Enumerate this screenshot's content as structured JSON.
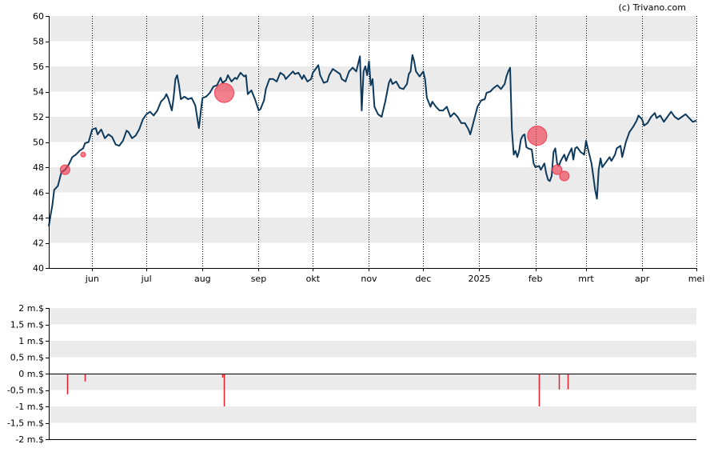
{
  "credit": "(c) Trivano.com",
  "colors": {
    "line": "#0d3a5c",
    "band": "#ebebeb",
    "marker": "#f03c50",
    "bar": "#e8202c",
    "axis": "#000000"
  },
  "chart_data": [
    {
      "type": "line",
      "title": "",
      "ylim": [
        40,
        60
      ],
      "y_ticks": [
        40,
        42,
        44,
        46,
        48,
        50,
        52,
        54,
        56,
        58,
        60
      ],
      "y_tick_labels": [
        "40",
        "42",
        "44",
        "46",
        "48",
        "50",
        "52",
        "54",
        "56",
        "58",
        "60"
      ],
      "x_ticks": [
        {
          "label": "jun",
          "day": 24
        },
        {
          "label": "jul",
          "day": 54
        },
        {
          "label": "aug",
          "day": 85
        },
        {
          "label": "sep",
          "day": 116
        },
        {
          "label": "okt",
          "day": 146
        },
        {
          "label": "nov",
          "day": 177
        },
        {
          "label": "dec",
          "day": 207
        },
        {
          "label": "2025",
          "day": 238
        },
        {
          "label": "feb",
          "day": 269
        },
        {
          "label": "mrt",
          "day": 297
        },
        {
          "label": "apr",
          "day": 328
        },
        {
          "label": "mei",
          "day": 358
        }
      ],
      "x_range": [
        0,
        358
      ],
      "grid": "vertical dotted at month starts",
      "series": [
        {
          "points": [
            [
              0,
              43.3
            ],
            [
              1,
              44.2
            ],
            [
              2,
              45.0
            ],
            [
              3,
              46.2
            ],
            [
              5,
              46.5
            ],
            [
              7,
              47.6
            ],
            [
              9,
              47.8
            ],
            [
              11,
              48.2
            ],
            [
              13,
              48.8
            ],
            [
              15,
              49.0
            ],
            [
              17,
              49.3
            ],
            [
              19,
              49.5
            ],
            [
              20,
              49.9
            ],
            [
              22,
              50.0
            ],
            [
              24,
              51.0
            ],
            [
              26,
              51.1
            ],
            [
              27,
              50.6
            ],
            [
              29,
              51.0
            ],
            [
              31,
              50.3
            ],
            [
              33,
              50.6
            ],
            [
              35,
              50.4
            ],
            [
              37,
              49.8
            ],
            [
              39,
              49.7
            ],
            [
              41,
              50.1
            ],
            [
              43,
              50.9
            ],
            [
              44,
              50.8
            ],
            [
              46,
              50.3
            ],
            [
              48,
              50.5
            ],
            [
              50,
              51.0
            ],
            [
              52,
              51.8
            ],
            [
              54,
              52.2
            ],
            [
              56,
              52.4
            ],
            [
              58,
              52.1
            ],
            [
              60,
              52.5
            ],
            [
              62,
              53.2
            ],
            [
              64,
              53.5
            ],
            [
              65,
              53.8
            ],
            [
              66,
              53.5
            ],
            [
              68,
              52.5
            ],
            [
              69,
              53.5
            ],
            [
              70,
              55.0
            ],
            [
              71,
              55.3
            ],
            [
              72,
              54.5
            ],
            [
              73,
              53.4
            ],
            [
              75,
              53.6
            ],
            [
              77,
              53.4
            ],
            [
              79,
              53.5
            ],
            [
              81,
              52.9
            ],
            [
              82,
              52.0
            ],
            [
              83,
              51.1
            ],
            [
              84,
              52.4
            ],
            [
              85,
              53.5
            ],
            [
              87,
              53.6
            ],
            [
              89,
              53.9
            ],
            [
              91,
              54.4
            ],
            [
              93,
              54.5
            ],
            [
              95,
              55.1
            ],
            [
              96,
              54.7
            ],
            [
              98,
              54.9
            ],
            [
              99,
              55.3
            ],
            [
              101,
              54.8
            ],
            [
              103,
              55.1
            ],
            [
              104,
              55.0
            ],
            [
              106,
              55.5
            ],
            [
              108,
              55.2
            ],
            [
              109,
              55.3
            ],
            [
              110,
              53.8
            ],
            [
              112,
              54.1
            ],
            [
              114,
              53.4
            ],
            [
              116,
              52.5
            ],
            [
              117,
              52.6
            ],
            [
              119,
              53.3
            ],
            [
              120,
              54.2
            ],
            [
              122,
              55.0
            ],
            [
              124,
              55.0
            ],
            [
              126,
              54.8
            ],
            [
              128,
              55.5
            ],
            [
              130,
              55.3
            ],
            [
              131,
              55.0
            ],
            [
              133,
              55.3
            ],
            [
              135,
              55.6
            ],
            [
              136,
              55.4
            ],
            [
              138,
              55.5
            ],
            [
              140,
              55.0
            ],
            [
              141,
              55.3
            ],
            [
              143,
              54.8
            ],
            [
              145,
              55.0
            ],
            [
              146,
              55.5
            ],
            [
              148,
              55.9
            ],
            [
              149,
              56.1
            ],
            [
              150,
              55.3
            ],
            [
              152,
              54.7
            ],
            [
              154,
              54.8
            ],
            [
              155,
              55.3
            ],
            [
              157,
              55.8
            ],
            [
              159,
              55.6
            ],
            [
              161,
              55.4
            ],
            [
              162,
              55.0
            ],
            [
              164,
              54.8
            ],
            [
              166,
              55.6
            ],
            [
              168,
              55.9
            ],
            [
              170,
              55.6
            ],
            [
              172,
              56.8
            ],
            [
              173,
              52.5
            ],
            [
              174,
              55.6
            ],
            [
              175,
              56.0
            ],
            [
              176,
              55.3
            ],
            [
              177,
              56.4
            ],
            [
              178,
              54.5
            ],
            [
              179,
              55.0
            ],
            [
              180,
              52.8
            ],
            [
              182,
              52.2
            ],
            [
              184,
              52.0
            ],
            [
              186,
              53.2
            ],
            [
              188,
              54.7
            ],
            [
              189,
              55.0
            ],
            [
              190,
              54.6
            ],
            [
              192,
              54.8
            ],
            [
              194,
              54.3
            ],
            [
              196,
              54.2
            ],
            [
              198,
              54.6
            ],
            [
              199,
              55.4
            ],
            [
              200,
              55.6
            ],
            [
              201,
              56.9
            ],
            [
              202,
              56.4
            ],
            [
              203,
              55.6
            ],
            [
              205,
              55.2
            ],
            [
              207,
              55.6
            ],
            [
              208,
              55.0
            ],
            [
              209,
              53.5
            ],
            [
              211,
              52.8
            ],
            [
              212,
              53.2
            ],
            [
              214,
              52.8
            ],
            [
              216,
              52.5
            ],
            [
              218,
              52.5
            ],
            [
              220,
              52.8
            ],
            [
              222,
              52.0
            ],
            [
              224,
              52.3
            ],
            [
              226,
              52.0
            ],
            [
              228,
              51.5
            ],
            [
              230,
              51.5
            ],
            [
              232,
              51.0
            ],
            [
              233,
              50.6
            ],
            [
              235,
              51.7
            ],
            [
              237,
              52.8
            ],
            [
              239,
              53.3
            ],
            [
              241,
              53.4
            ],
            [
              242,
              53.9
            ],
            [
              244,
              54.0
            ],
            [
              246,
              54.3
            ],
            [
              248,
              54.5
            ],
            [
              250,
              54.2
            ],
            [
              252,
              54.6
            ],
            [
              253,
              55.2
            ],
            [
              254,
              55.6
            ],
            [
              255,
              55.9
            ],
            [
              256,
              51.0
            ],
            [
              257,
              49.0
            ],
            [
              258,
              49.3
            ],
            [
              259,
              48.8
            ],
            [
              260,
              49.3
            ],
            [
              261,
              50.2
            ],
            [
              262,
              50.5
            ],
            [
              263,
              50.6
            ],
            [
              264,
              49.6
            ],
            [
              265,
              49.5
            ],
            [
              267,
              49.4
            ],
            [
              268,
              48.3
            ],
            [
              269,
              48.0
            ],
            [
              271,
              48.1
            ],
            [
              272,
              47.8
            ],
            [
              274,
              48.3
            ],
            [
              275,
              47.5
            ],
            [
              276,
              47.0
            ],
            [
              277,
              46.9
            ],
            [
              278,
              47.3
            ],
            [
              279,
              49.2
            ],
            [
              280,
              49.5
            ],
            [
              281,
              48.3
            ],
            [
              282,
              48.1
            ],
            [
              283,
              48.5
            ],
            [
              285,
              49.0
            ],
            [
              286,
              48.5
            ],
            [
              287,
              48.9
            ],
            [
              289,
              49.5
            ],
            [
              290,
              48.6
            ],
            [
              291,
              49.5
            ],
            [
              292,
              49.6
            ],
            [
              294,
              49.2
            ],
            [
              296,
              49.0
            ],
            [
              297,
              50.1
            ],
            [
              298,
              49.5
            ],
            [
              300,
              48.3
            ],
            [
              301,
              47.3
            ],
            [
              302,
              46.2
            ],
            [
              303,
              45.5
            ],
            [
              304,
              47.8
            ],
            [
              305,
              48.7
            ],
            [
              306,
              48.0
            ],
            [
              308,
              48.4
            ],
            [
              310,
              48.8
            ],
            [
              311,
              48.5
            ],
            [
              313,
              49.0
            ],
            [
              314,
              49.5
            ],
            [
              316,
              49.7
            ],
            [
              317,
              48.8
            ],
            [
              319,
              50.0
            ],
            [
              321,
              50.8
            ],
            [
              323,
              51.2
            ],
            [
              325,
              51.7
            ],
            [
              326,
              52.1
            ],
            [
              328,
              51.8
            ],
            [
              329,
              51.3
            ],
            [
              331,
              51.5
            ],
            [
              333,
              52.0
            ],
            [
              335,
              52.3
            ],
            [
              336,
              51.9
            ],
            [
              338,
              52.1
            ],
            [
              340,
              51.6
            ],
            [
              342,
              52.0
            ],
            [
              344,
              52.4
            ],
            [
              346,
              52.0
            ],
            [
              348,
              51.8
            ],
            [
              350,
              52.0
            ],
            [
              352,
              52.2
            ],
            [
              354,
              51.9
            ],
            [
              356,
              51.6
            ],
            [
              358,
              51.7
            ]
          ]
        }
      ],
      "markers": [
        {
          "day": 9,
          "value": 47.8,
          "size": "small"
        },
        {
          "day": 19,
          "value": 49.0,
          "size": "tiny"
        },
        {
          "day": 97,
          "value": 53.9,
          "size": "large"
        },
        {
          "day": 270,
          "value": 50.5,
          "size": "large"
        },
        {
          "day": 281,
          "value": 47.8,
          "size": "small"
        },
        {
          "day": 285,
          "value": 47.3,
          "size": "small"
        }
      ]
    },
    {
      "type": "bar",
      "title": "",
      "ylim": [
        -2,
        2
      ],
      "y_ticks": [
        -2,
        -1.5,
        -1,
        -0.5,
        0,
        0.5,
        1,
        1.5,
        2
      ],
      "y_tick_labels": [
        "-2 m.$",
        "-1,5 m.$",
        "-1 m.$",
        "-0,5 m.$",
        "0 m.$",
        "0,5 m.$",
        "1 m.$",
        "1,5 m.$",
        "2 m.$"
      ],
      "x_range": [
        0,
        358
      ],
      "bars": [
        {
          "day": 10,
          "value": -0.63
        },
        {
          "day": 20,
          "value": -0.24
        },
        {
          "day": 96,
          "value": -0.12
        },
        {
          "day": 97,
          "value": -1.0
        },
        {
          "day": 271,
          "value": -1.0
        },
        {
          "day": 282,
          "value": -0.48
        },
        {
          "day": 287,
          "value": -0.48
        }
      ]
    }
  ]
}
